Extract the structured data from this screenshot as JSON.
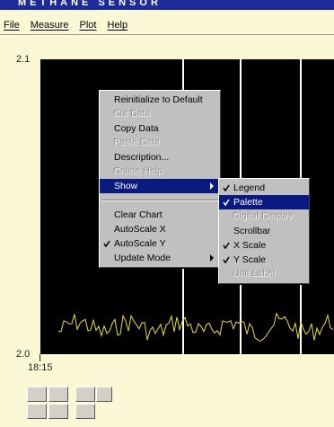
{
  "window": {
    "title": "METHANE SENSOR"
  },
  "menu_bar": [
    "File",
    "Measure",
    "Plot",
    "Help"
  ],
  "chart": {
    "y_axis_labels": [
      "2.1",
      "2.0"
    ],
    "x_axis_label": "18:15"
  },
  "context_menu": {
    "items": [
      {
        "label": "Reinitialize to Default"
      },
      {
        "label": "Cut Data",
        "disabled": true
      },
      {
        "label": "Copy Data"
      },
      {
        "label": "Paste Data",
        "disabled": true
      },
      {
        "label": "Description..."
      },
      {
        "label": "Online Help",
        "disabled": true
      },
      {
        "label": "Show",
        "highlighted": true,
        "submenu": true
      },
      {
        "separator": true
      },
      {
        "label": "Clear Chart"
      },
      {
        "label": "AutoScale X"
      },
      {
        "label": "AutoScale Y",
        "checked": true
      },
      {
        "label": "Update Mode",
        "submenu": true
      }
    ]
  },
  "submenu": {
    "items": [
      {
        "label": "Legend",
        "checked": true
      },
      {
        "label": "Palette",
        "checked": true,
        "highlighted": true
      },
      {
        "label": "Digital Display",
        "disabled": true
      },
      {
        "label": "Scrollbar"
      },
      {
        "label": "X Scale",
        "checked": true
      },
      {
        "label": "Y Scale",
        "checked": true
      },
      {
        "label": "Unit Label",
        "disabled": true
      }
    ]
  }
}
